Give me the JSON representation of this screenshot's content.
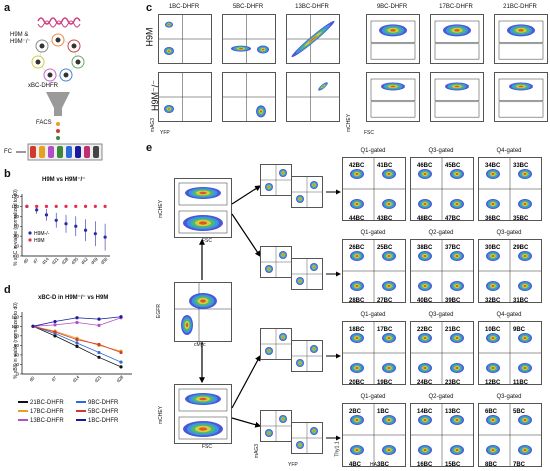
{
  "panel_letters": {
    "a": "a",
    "b": "b",
    "c": "c",
    "d": "d",
    "e": "e"
  },
  "panel_a": {
    "cells_label_line1": "H9M &",
    "cells_label_line2": "H9M⁻/⁻",
    "library_label": "xBC-DHFR",
    "facs_label": "FACS",
    "fc_label": "FC"
  },
  "panel_c": {
    "columns": [
      "1BC-DHFR",
      "5BC-DHFR",
      "13BC-DHFR",
      "9BC-DHFR",
      "17BC-DHFR",
      "21BC-DHFR"
    ],
    "row_labels": [
      "H9M",
      "H9M⁻/⁻"
    ],
    "x_axis_left": "YFP",
    "y_axis_left": "mAG3",
    "x_axis_right": "FSC",
    "y_axis_right": "mCHEY",
    "gate_labels": [
      "mCHEY pos",
      "mCHEY neg"
    ]
  },
  "panel_e": {
    "left_y_top": "mCHEY",
    "left_x_top": "FSC",
    "mid_y": "EGFR",
    "mid_x": "cMyc",
    "left_y_bottom": "mCHEY",
    "left_x_bottom": "FSC",
    "col2_y": "mAG3",
    "col2_x": "YFP",
    "col3_y": "Thy1.1",
    "col3_x": "HA",
    "rows": [
      {
        "gates": [
          "Q1-gated",
          "Q3-gated",
          "Q4-gated"
        ],
        "quads": [
          [
            "42BC",
            "41BC",
            "44BC",
            "43BC"
          ],
          [
            "46BC",
            "45BC",
            "48BC",
            "47BC"
          ],
          [
            "34BC",
            "33BC",
            "36BC",
            "35BC"
          ]
        ]
      },
      {
        "gates": [
          "Q1-gated",
          "Q2-gated",
          "Q3-gated"
        ],
        "quads": [
          [
            "26BC",
            "25BC",
            "28BC",
            "27BC"
          ],
          [
            "38BC",
            "37BC",
            "40BC",
            "39BC"
          ],
          [
            "30BC",
            "29BC",
            "32BC",
            "31BC"
          ]
        ]
      },
      {
        "gates": [
          "Q1-gated",
          "Q3-gated",
          "Q4-gated"
        ],
        "quads": [
          [
            "18BC",
            "17BC",
            "20BC",
            "19BC"
          ],
          [
            "22BC",
            "21BC",
            "24BC",
            "23BC"
          ],
          [
            "10BC",
            "9BC",
            "12BC",
            "11BC"
          ]
        ]
      },
      {
        "gates": [
          "Q1-gated",
          "Q2-gated",
          "Q3-gated"
        ],
        "quads": [
          [
            "2BC",
            "1BC",
            "4BC",
            "3BC"
          ],
          [
            "14BC",
            "13BC",
            "16BC",
            "15BC"
          ],
          [
            "6BC",
            "5BC",
            "8BC",
            "7BC"
          ]
        ]
      }
    ]
  },
  "panel_b": {
    "title": "H9M vs H9M⁻/⁻",
    "ylabel": "% xBC in viable (normalized to d0)",
    "legend": [
      "H9M-/-",
      "H9M"
    ]
  },
  "panel_d": {
    "title": "xBC-D in H9M⁻/⁻ vs H9M",
    "ylabel": "% xBC in viable (normalized to d0)",
    "legend": [
      "21BC-DHFR",
      "9BC-DHFR",
      "17BC-DHFR",
      "5BC-DHFR",
      "13BC-DHFR",
      "1BC-DHFR"
    ],
    "legend_colors": [
      "#111111",
      "#2e6bd6",
      "#e8a020",
      "#d03a2a",
      "#b050c8",
      "#1a1aa0"
    ]
  },
  "chart_data": [
    {
      "type": "scatter",
      "title": "H9M vs H9M⁻/⁻",
      "ylabel": "% xBC in viable (normalized to d0)",
      "categories": [
        "d0",
        "d7",
        "d14",
        "d21",
        "d28",
        "d35",
        "d42",
        "d49",
        "d56"
      ],
      "ylim": [
        0,
        125
      ],
      "yticks": [
        0,
        20,
        40,
        60,
        80,
        100,
        120
      ],
      "series": [
        {
          "name": "H9M-/-",
          "color": "#2a2aa8",
          "values": [
            100,
            93,
            83,
            72,
            65,
            60,
            52,
            45,
            38
          ],
          "err": [
            2,
            8,
            12,
            15,
            18,
            20,
            22,
            25,
            27
          ]
        },
        {
          "name": "H9M",
          "color": "#e0304a",
          "values": [
            100,
            100,
            100,
            100,
            100,
            100,
            100,
            100,
            100
          ],
          "err": [
            1,
            2,
            2,
            3,
            3,
            3,
            3,
            3,
            3
          ]
        }
      ]
    },
    {
      "type": "line",
      "title": "xBC-D in H9M⁻/⁻ vs H9M",
      "ylabel": "% xBC in viable (normalized to d0)",
      "categories": [
        "d0",
        "d7",
        "d14",
        "d21",
        "d28"
      ],
      "ylim": [
        0,
        130
      ],
      "yticks": [
        0,
        20,
        40,
        60,
        80,
        100,
        120
      ],
      "series": [
        {
          "name": "21BC-DHFR",
          "color": "#111111",
          "values": [
            100,
            80,
            58,
            35,
            15
          ]
        },
        {
          "name": "9BC-DHFR",
          "color": "#2e6bd6",
          "values": [
            100,
            85,
            65,
            45,
            25
          ]
        },
        {
          "name": "17BC-DHFR",
          "color": "#e8a020",
          "values": [
            100,
            90,
            75,
            60,
            48
          ]
        },
        {
          "name": "5BC-DHFR",
          "color": "#d03a2a",
          "values": [
            100,
            88,
            72,
            62,
            45
          ]
        },
        {
          "name": "13BC-DHFR",
          "color": "#b050c8",
          "values": [
            100,
            103,
            108,
            102,
            118
          ]
        },
        {
          "name": "1BC-DHFR",
          "color": "#1a1aa0",
          "values": [
            100,
            110,
            118,
            115,
            120
          ]
        }
      ]
    }
  ]
}
